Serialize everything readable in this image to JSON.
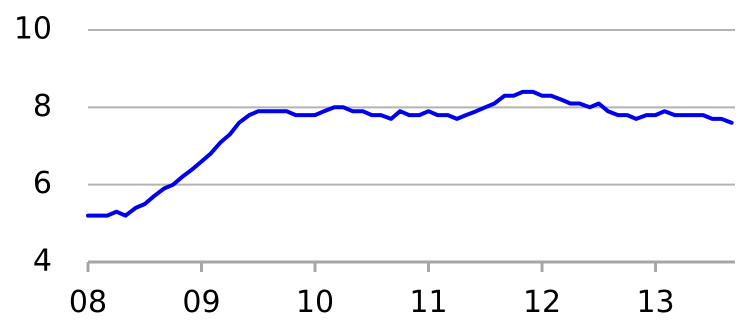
{
  "chart_data": {
    "type": "line",
    "title": "",
    "xlabel": "",
    "ylabel": "",
    "xlim": [
      2008.0,
      2013.7
    ],
    "ylim": [
      4,
      10
    ],
    "yticks": [
      4,
      6,
      8,
      10
    ],
    "ytick_labels": [
      "4",
      "6",
      "8",
      "10"
    ],
    "xticks": [
      2008,
      2009,
      2010,
      2011,
      2012,
      2013
    ],
    "xtick_labels": [
      "08",
      "09",
      "10",
      "11",
      "12",
      "13"
    ],
    "grid": true,
    "legend": "none",
    "colors": {
      "series": "#0000ee",
      "grid": "#b3b3b3",
      "axis": "#a6a6a6"
    },
    "series": [
      {
        "x": [
          2008.0,
          2008.08,
          2008.17,
          2008.25,
          2008.33,
          2008.42,
          2008.5,
          2008.58,
          2008.67,
          2008.75,
          2008.83,
          2008.92,
          2009.0,
          2009.08,
          2009.17,
          2009.25,
          2009.33,
          2009.42,
          2009.5,
          2009.58,
          2009.67,
          2009.75,
          2009.83,
          2009.92,
          2010.0,
          2010.08,
          2010.17,
          2010.25,
          2010.33,
          2010.42,
          2010.5,
          2010.58,
          2010.67,
          2010.75,
          2010.83,
          2010.92,
          2011.0,
          2011.08,
          2011.17,
          2011.25,
          2011.33,
          2011.42,
          2011.5,
          2011.58,
          2011.67,
          2011.75,
          2011.83,
          2011.92,
          2012.0,
          2012.08,
          2012.17,
          2012.25,
          2012.33,
          2012.42,
          2012.5,
          2012.58,
          2012.67,
          2012.75,
          2012.83,
          2012.92,
          2013.0,
          2013.08,
          2013.17,
          2013.25,
          2013.33,
          2013.42,
          2013.5,
          2013.58,
          2013.67
        ],
        "values": [
          5.2,
          5.2,
          5.2,
          5.3,
          5.2,
          5.4,
          5.5,
          5.7,
          5.9,
          6.0,
          6.2,
          6.4,
          6.6,
          6.8,
          7.1,
          7.3,
          7.6,
          7.8,
          7.9,
          7.9,
          7.9,
          7.9,
          7.8,
          7.8,
          7.8,
          7.9,
          8.0,
          8.0,
          7.9,
          7.9,
          7.8,
          7.8,
          7.7,
          7.9,
          7.8,
          7.8,
          7.9,
          7.8,
          7.8,
          7.7,
          7.8,
          7.9,
          8.0,
          8.1,
          8.3,
          8.3,
          8.4,
          8.4,
          8.3,
          8.3,
          8.2,
          8.1,
          8.1,
          8.0,
          8.1,
          7.9,
          7.8,
          7.8,
          7.7,
          7.8,
          7.8,
          7.9,
          7.8,
          7.8,
          7.8,
          7.8,
          7.7,
          7.7,
          7.6
        ]
      }
    ]
  }
}
